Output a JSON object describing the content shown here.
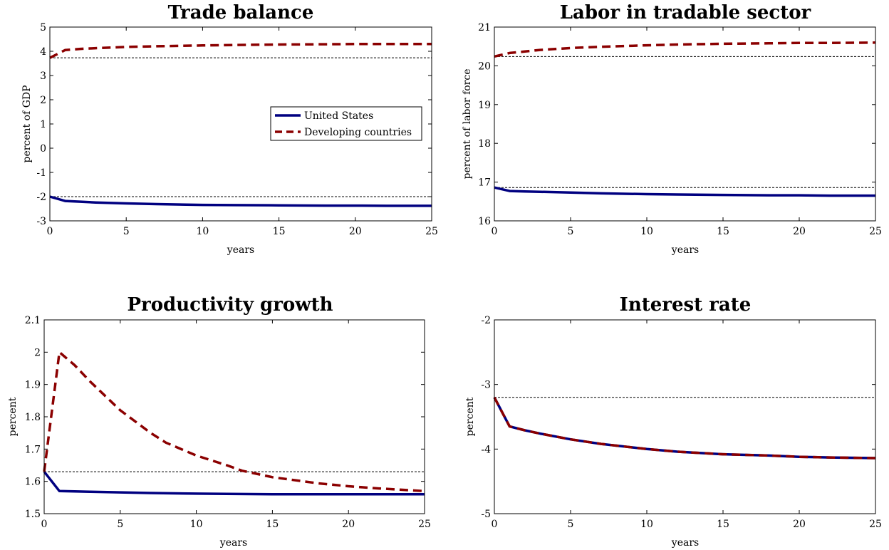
{
  "colors": {
    "us": "#000080",
    "dev": "#8b0000",
    "baseline": "#000000"
  },
  "legend": [
    {
      "label": "United States",
      "style": "solid",
      "color": "#000080"
    },
    {
      "label": "Developing countries",
      "style": "dashed",
      "color": "#8b0000"
    }
  ],
  "chart_data": [
    {
      "type": "line",
      "title": "Trade balance",
      "xlabel": "years",
      "ylabel": "percent of GDP",
      "xlim": [
        0,
        25
      ],
      "ylim": [
        -3,
        5
      ],
      "xticks": [
        0,
        5,
        10,
        15,
        20,
        25
      ],
      "yticks": [
        -3,
        -2,
        -1,
        0,
        1,
        2,
        3,
        4,
        5
      ],
      "baselines": [
        3.73,
        -2.0
      ],
      "legend_position": "center-right",
      "series": [
        {
          "name": "United States",
          "style": "solid",
          "color": "#000080",
          "x": [
            0,
            1,
            2,
            3,
            5,
            7,
            10,
            12,
            15,
            18,
            20,
            22,
            25
          ],
          "y": [
            -2.0,
            -2.18,
            -2.21,
            -2.24,
            -2.28,
            -2.31,
            -2.34,
            -2.35,
            -2.36,
            -2.37,
            -2.37,
            -2.38,
            -2.38
          ]
        },
        {
          "name": "Developing countries",
          "style": "dashed",
          "color": "#8b0000",
          "x": [
            0,
            1,
            2,
            3,
            5,
            7,
            10,
            12,
            15,
            18,
            20,
            22,
            25
          ],
          "y": [
            3.73,
            4.05,
            4.1,
            4.13,
            4.18,
            4.21,
            4.24,
            4.26,
            4.28,
            4.29,
            4.3,
            4.3,
            4.3
          ]
        }
      ]
    },
    {
      "type": "line",
      "title": "Labor in tradable sector",
      "xlabel": "years",
      "ylabel": "percent of labor force",
      "xlim": [
        0,
        25
      ],
      "ylim": [
        16,
        21
      ],
      "xticks": [
        0,
        5,
        10,
        15,
        20,
        25
      ],
      "yticks": [
        16,
        17,
        18,
        19,
        20,
        21
      ],
      "baselines": [
        20.24,
        16.86
      ],
      "series": [
        {
          "name": "United States",
          "style": "solid",
          "color": "#000080",
          "x": [
            0,
            1,
            2,
            3,
            5,
            7,
            10,
            12,
            15,
            18,
            20,
            22,
            25
          ],
          "y": [
            16.86,
            16.77,
            16.76,
            16.75,
            16.73,
            16.71,
            16.69,
            16.68,
            16.67,
            16.66,
            16.66,
            16.65,
            16.65
          ]
        },
        {
          "name": "Developing countries",
          "style": "dashed",
          "color": "#8b0000",
          "x": [
            0,
            1,
            2,
            3,
            5,
            7,
            10,
            12,
            15,
            18,
            20,
            22,
            25
          ],
          "y": [
            20.24,
            20.33,
            20.37,
            20.41,
            20.46,
            20.49,
            20.53,
            20.55,
            20.57,
            20.58,
            20.59,
            20.59,
            20.6
          ]
        }
      ]
    },
    {
      "type": "line",
      "title": "Productivity growth",
      "xlabel": "years",
      "ylabel": "percent",
      "xlim": [
        0,
        25
      ],
      "ylim": [
        1.5,
        2.1
      ],
      "xticks": [
        0,
        5,
        10,
        15,
        20,
        25
      ],
      "yticks": [
        1.5,
        1.6,
        1.7,
        1.8,
        1.9,
        2.0,
        2.1
      ],
      "ytick_labels": [
        "1.5",
        "1.6",
        "1.7",
        "1.8",
        "1.9",
        "2",
        "2.1"
      ],
      "baselines": [
        1.63
      ],
      "series": [
        {
          "name": "United States",
          "style": "solid",
          "color": "#000080",
          "x": [
            0,
            1,
            2,
            3,
            5,
            7,
            10,
            12,
            15,
            18,
            20,
            22,
            25
          ],
          "y": [
            1.63,
            1.57,
            1.569,
            1.568,
            1.566,
            1.564,
            1.562,
            1.561,
            1.56,
            1.56,
            1.56,
            1.56,
            1.56
          ]
        },
        {
          "name": "Developing countries",
          "style": "dashed",
          "color": "#8b0000",
          "x": [
            0,
            1,
            2,
            3,
            5,
            7,
            8,
            10,
            12,
            13,
            15,
            18,
            20,
            22,
            25
          ],
          "y": [
            1.63,
            2.0,
            1.96,
            1.91,
            1.82,
            1.75,
            1.72,
            1.68,
            1.65,
            1.633,
            1.613,
            1.594,
            1.585,
            1.578,
            1.57
          ]
        }
      ]
    },
    {
      "type": "line",
      "title": "Interest rate",
      "xlabel": "years",
      "ylabel": "percent",
      "xlim": [
        0,
        25
      ],
      "ylim": [
        -5,
        -2
      ],
      "xticks": [
        0,
        5,
        10,
        15,
        20,
        25
      ],
      "yticks": [
        -5,
        -4,
        -3,
        -2
      ],
      "baselines": [
        -3.2
      ],
      "series": [
        {
          "name": "United States",
          "style": "solid",
          "color": "#000080",
          "x": [
            0,
            1,
            2,
            3,
            5,
            7,
            10,
            12,
            15,
            18,
            20,
            22,
            25
          ],
          "y": [
            -3.2,
            -3.65,
            -3.71,
            -3.76,
            -3.85,
            -3.92,
            -4.0,
            -4.04,
            -4.08,
            -4.1,
            -4.12,
            -4.13,
            -4.14
          ]
        },
        {
          "name": "Developing countries",
          "style": "dashed",
          "color": "#8b0000",
          "x": [
            0,
            1,
            2,
            3,
            5,
            7,
            10,
            12,
            15,
            18,
            20,
            22,
            25
          ],
          "y": [
            -3.2,
            -3.65,
            -3.71,
            -3.76,
            -3.85,
            -3.92,
            -4.0,
            -4.04,
            -4.08,
            -4.1,
            -4.12,
            -4.13,
            -4.14
          ]
        }
      ]
    }
  ]
}
